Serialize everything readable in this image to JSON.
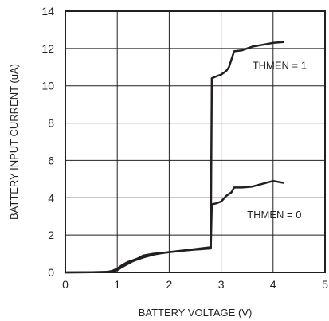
{
  "chart_data": {
    "type": "line",
    "xlabel": "BATTERY VOLTAGE (V)",
    "ylabel": "BATTERY INPUT CURRENT (uA)",
    "xlim": [
      0,
      5
    ],
    "ylim": [
      0,
      14
    ],
    "x_ticks": [
      "0",
      "1",
      "2",
      "3",
      "4",
      "5"
    ],
    "y_ticks": [
      "0",
      "2",
      "4",
      "6",
      "8",
      "10",
      "12",
      "14"
    ],
    "grid": true,
    "legend": "none",
    "line_color": "#231f20",
    "annotations": [
      {
        "text": "THMEN = 1",
        "x": 3.6,
        "y": 10.9
      },
      {
        "text": "THMEN = 0",
        "x": 3.5,
        "y": 2.9
      }
    ],
    "series": [
      {
        "name": "THMEN = 1",
        "points": [
          [
            0.0,
            0.0
          ],
          [
            0.5,
            0.01
          ],
          [
            0.8,
            0.03
          ],
          [
            0.9,
            0.08
          ],
          [
            1.0,
            0.2
          ],
          [
            1.1,
            0.4
          ],
          [
            1.2,
            0.55
          ],
          [
            1.3,
            0.65
          ],
          [
            1.4,
            0.75
          ],
          [
            1.5,
            0.9
          ],
          [
            1.7,
            1.0
          ],
          [
            1.9,
            1.05
          ],
          [
            2.2,
            1.15
          ],
          [
            2.5,
            1.25
          ],
          [
            2.8,
            1.35
          ],
          [
            2.82,
            10.4
          ],
          [
            2.9,
            10.5
          ],
          [
            3.0,
            10.6
          ],
          [
            3.1,
            10.8
          ],
          [
            3.15,
            11.0
          ],
          [
            3.25,
            11.85
          ],
          [
            3.4,
            11.9
          ],
          [
            3.6,
            12.1
          ],
          [
            3.8,
            12.2
          ],
          [
            4.0,
            12.3
          ],
          [
            4.2,
            12.35
          ]
        ]
      },
      {
        "name": "THMEN = 0",
        "points": [
          [
            0.0,
            0.0
          ],
          [
            0.5,
            0.01
          ],
          [
            0.8,
            0.02
          ],
          [
            0.9,
            0.05
          ],
          [
            1.0,
            0.12
          ],
          [
            1.1,
            0.3
          ],
          [
            1.2,
            0.45
          ],
          [
            1.3,
            0.6
          ],
          [
            1.4,
            0.7
          ],
          [
            1.5,
            0.8
          ],
          [
            1.7,
            0.95
          ],
          [
            1.9,
            1.05
          ],
          [
            2.2,
            1.15
          ],
          [
            2.5,
            1.22
          ],
          [
            2.8,
            1.28
          ],
          [
            2.82,
            3.65
          ],
          [
            2.9,
            3.7
          ],
          [
            3.0,
            3.8
          ],
          [
            3.1,
            4.1
          ],
          [
            3.2,
            4.3
          ],
          [
            3.25,
            4.55
          ],
          [
            3.4,
            4.55
          ],
          [
            3.6,
            4.6
          ],
          [
            3.8,
            4.75
          ],
          [
            4.0,
            4.9
          ],
          [
            4.2,
            4.8
          ]
        ]
      }
    ]
  }
}
